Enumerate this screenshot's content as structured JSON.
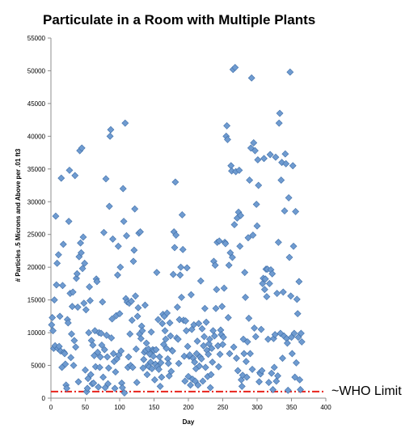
{
  "chart_data": {
    "type": "scatter",
    "title": "Particulate in a Room with Multiple Plants",
    "xlabel": "Day",
    "ylabel": "# Particles .5 Microns and Above per .01 ft3",
    "xlim": [
      0,
      400
    ],
    "ylim": [
      0,
      55000
    ],
    "xticks": [
      0,
      50,
      100,
      150,
      200,
      250,
      300,
      350,
      400
    ],
    "yticks": [
      0,
      5000,
      10000,
      15000,
      20000,
      25000,
      30000,
      35000,
      40000,
      45000,
      50000,
      55000
    ],
    "grid": false,
    "marker_color": "#6f9bd0",
    "marker_edge_color": "#3e6ea8",
    "annotation": {
      "text": "~WHO Limit",
      "y": 1000,
      "line_color": "#e8221b",
      "line_style": "dash-dot"
    },
    "points": [
      [
        1,
        11200
      ],
      [
        2,
        12300
      ],
      [
        3,
        10300
      ],
      [
        4,
        7600
      ],
      [
        5,
        15000
      ],
      [
        6,
        8000
      ],
      [
        7,
        27800
      ],
      [
        8,
        17300
      ],
      [
        9,
        20600
      ],
      [
        10,
        7600
      ],
      [
        11,
        21900
      ],
      [
        12,
        7900
      ],
      [
        13,
        12500
      ],
      [
        14,
        7200
      ],
      [
        15,
        33600
      ],
      [
        16,
        4700
      ],
      [
        17,
        17200
      ],
      [
        18,
        23500
      ],
      [
        19,
        7000
      ],
      [
        20,
        6800
      ],
      [
        21,
        5200
      ],
      [
        22,
        2000
      ],
      [
        23,
        1500
      ],
      [
        24,
        12000
      ],
      [
        25,
        11500
      ],
      [
        26,
        27000
      ],
      [
        27,
        34800
      ],
      [
        28,
        16000
      ],
      [
        29,
        6200
      ],
      [
        30,
        9800
      ],
      [
        31,
        14000
      ],
      [
        32,
        16200
      ],
      [
        33,
        5000
      ],
      [
        34,
        8800
      ],
      [
        35,
        34000
      ],
      [
        36,
        7800
      ],
      [
        37,
        18300
      ],
      [
        38,
        19000
      ],
      [
        39,
        13900
      ],
      [
        40,
        2500
      ],
      [
        41,
        21600
      ],
      [
        42,
        37800
      ],
      [
        43,
        23700
      ],
      [
        44,
        22200
      ],
      [
        45,
        38200
      ],
      [
        46,
        19800
      ],
      [
        47,
        24600
      ],
      [
        48,
        14500
      ],
      [
        49,
        20600
      ],
      [
        50,
        4300
      ],
      [
        51,
        13500
      ],
      [
        52,
        1000
      ],
      [
        53,
        1500
      ],
      [
        54,
        3000
      ],
      [
        55,
        10000
      ],
      [
        56,
        17000
      ],
      [
        57,
        14900
      ],
      [
        58,
        3600
      ],
      [
        59,
        8800
      ],
      [
        60,
        2200
      ],
      [
        61,
        8100
      ],
      [
        62,
        2300
      ],
      [
        63,
        6500
      ],
      [
        64,
        10300
      ],
      [
        65,
        4800
      ],
      [
        66,
        18200
      ],
      [
        67,
        17800
      ],
      [
        68,
        7000
      ],
      [
        69,
        1700
      ],
      [
        70,
        10000
      ],
      [
        71,
        4700
      ],
      [
        72,
        6300
      ],
      [
        73,
        9900
      ],
      [
        74,
        8100
      ],
      [
        75,
        14700
      ],
      [
        76,
        3200
      ],
      [
        77,
        25300
      ],
      [
        78,
        7400
      ],
      [
        79,
        1600
      ],
      [
        80,
        33500
      ],
      [
        81,
        9600
      ],
      [
        82,
        6300
      ],
      [
        83,
        2200
      ],
      [
        84,
        4600
      ],
      [
        85,
        29300
      ],
      [
        86,
        40000
      ],
      [
        87,
        41000
      ],
      [
        88,
        9200
      ],
      [
        89,
        12100
      ],
      [
        90,
        24300
      ],
      [
        91,
        6800
      ],
      [
        92,
        5600
      ],
      [
        93,
        1500
      ],
      [
        94,
        4000
      ],
      [
        95,
        12600
      ],
      [
        96,
        6000
      ],
      [
        97,
        18800
      ],
      [
        98,
        23200
      ],
      [
        99,
        6600
      ],
      [
        100,
        12900
      ],
      [
        101,
        20000
      ],
      [
        102,
        7200
      ],
      [
        103,
        2300
      ],
      [
        104,
        1600
      ],
      [
        105,
        32000
      ],
      [
        106,
        27000
      ],
      [
        107,
        800
      ],
      [
        108,
        42000
      ],
      [
        109,
        15200
      ],
      [
        110,
        24800
      ],
      [
        111,
        14700
      ],
      [
        112,
        4700
      ],
      [
        113,
        6300
      ],
      [
        114,
        14500
      ],
      [
        115,
        9800
      ],
      [
        116,
        5000
      ],
      [
        117,
        14800
      ],
      [
        118,
        11900
      ],
      [
        119,
        4700
      ],
      [
        120,
        20900
      ],
      [
        121,
        22600
      ],
      [
        122,
        28900
      ],
      [
        123,
        15600
      ],
      [
        124,
        7500
      ],
      [
        125,
        2400
      ],
      [
        126,
        12500
      ],
      [
        127,
        13800
      ],
      [
        128,
        25200
      ],
      [
        129,
        9800
      ],
      [
        130,
        25400
      ],
      [
        131,
        9100
      ],
      [
        132,
        11000
      ],
      [
        133,
        10300
      ],
      [
        134,
        4600
      ],
      [
        135,
        5900
      ],
      [
        136,
        7000
      ],
      [
        137,
        14200
      ],
      [
        138,
        7300
      ],
      [
        139,
        8400
      ],
      [
        140,
        3600
      ],
      [
        141,
        5000
      ],
      [
        142,
        7500
      ],
      [
        143,
        4800
      ],
      [
        144,
        6700
      ],
      [
        145,
        5500
      ],
      [
        146,
        10100
      ],
      [
        147,
        4500
      ],
      [
        148,
        7400
      ],
      [
        149,
        6400
      ],
      [
        150,
        7300
      ],
      [
        151,
        2800
      ],
      [
        152,
        5200
      ],
      [
        153,
        7400
      ],
      [
        154,
        19200
      ],
      [
        155,
        4800
      ],
      [
        156,
        12000
      ],
      [
        157,
        4400
      ],
      [
        158,
        6300
      ],
      [
        159,
        1800
      ],
      [
        160,
        5400
      ],
      [
        161,
        3200
      ],
      [
        162,
        11400
      ],
      [
        163,
        12800
      ],
      [
        164,
        8200
      ],
      [
        165,
        12500
      ],
      [
        166,
        10300
      ],
      [
        167,
        9000
      ],
      [
        168,
        7600
      ],
      [
        169,
        13000
      ],
      [
        170,
        6000
      ],
      [
        171,
        5300
      ],
      [
        172,
        3400
      ],
      [
        173,
        11500
      ],
      [
        174,
        9500
      ],
      [
        175,
        4100
      ],
      [
        176,
        7300
      ],
      [
        177,
        7200
      ],
      [
        178,
        18900
      ],
      [
        179,
        25400
      ],
      [
        180,
        23000
      ],
      [
        181,
        33000
      ],
      [
        182,
        24900
      ],
      [
        183,
        9200
      ],
      [
        184,
        13900
      ],
      [
        185,
        9000
      ],
      [
        186,
        5300
      ],
      [
        187,
        12000
      ],
      [
        188,
        18800
      ],
      [
        189,
        20000
      ],
      [
        190,
        15400
      ],
      [
        191,
        28000
      ],
      [
        192,
        22700
      ],
      [
        193,
        11900
      ],
      [
        194,
        6400
      ],
      [
        195,
        2600
      ],
      [
        196,
        11800
      ],
      [
        197,
        10300
      ],
      [
        198,
        19900
      ],
      [
        199,
        7900
      ],
      [
        200,
        3300
      ],
      [
        201,
        6400
      ],
      [
        202,
        6600
      ],
      [
        203,
        2000
      ],
      [
        204,
        15800
      ],
      [
        205,
        10500
      ],
      [
        206,
        2900
      ],
      [
        207,
        6100
      ],
      [
        208,
        11200
      ],
      [
        209,
        5500
      ],
      [
        210,
        2600
      ],
      [
        211,
        4500
      ],
      [
        212,
        6800
      ],
      [
        213,
        8700
      ],
      [
        214,
        2000
      ],
      [
        215,
        11400
      ],
      [
        216,
        4900
      ],
      [
        217,
        6300
      ],
      [
        218,
        17900
      ],
      [
        219,
        6000
      ],
      [
        220,
        10600
      ],
      [
        221,
        2600
      ],
      [
        222,
        8000
      ],
      [
        223,
        9400
      ],
      [
        224,
        13700
      ],
      [
        225,
        4700
      ],
      [
        226,
        11600
      ],
      [
        227,
        7300
      ],
      [
        228,
        3300
      ],
      [
        229,
        6700
      ],
      [
        230,
        8300
      ],
      [
        231,
        9000
      ],
      [
        232,
        1600
      ],
      [
        233,
        3600
      ],
      [
        234,
        7600
      ],
      [
        235,
        5500
      ],
      [
        236,
        10300
      ],
      [
        237,
        20900
      ],
      [
        238,
        9500
      ],
      [
        239,
        20300
      ],
      [
        240,
        13700
      ],
      [
        241,
        16600
      ],
      [
        242,
        23800
      ],
      [
        243,
        8000
      ],
      [
        244,
        4800
      ],
      [
        245,
        24000
      ],
      [
        246,
        6700
      ],
      [
        247,
        10400
      ],
      [
        248,
        9700
      ],
      [
        249,
        14000
      ],
      [
        250,
        8200
      ],
      [
        251,
        9300
      ],
      [
        252,
        16800
      ],
      [
        253,
        23800
      ],
      [
        254,
        23600
      ],
      [
        255,
        40000
      ],
      [
        256,
        41600
      ],
      [
        257,
        39500
      ],
      [
        258,
        12300
      ],
      [
        259,
        20300
      ],
      [
        260,
        6800
      ],
      [
        261,
        22200
      ],
      [
        262,
        35500
      ],
      [
        263,
        34700
      ],
      [
        264,
        21500
      ],
      [
        265,
        50200
      ],
      [
        266,
        7800
      ],
      [
        267,
        26500
      ],
      [
        268,
        50500
      ],
      [
        269,
        34600
      ],
      [
        270,
        6100
      ],
      [
        271,
        27500
      ],
      [
        272,
        4200
      ],
      [
        273,
        28400
      ],
      [
        274,
        34800
      ],
      [
        275,
        23200
      ],
      [
        276,
        27900
      ],
      [
        277,
        2800
      ],
      [
        278,
        1800
      ],
      [
        279,
        3500
      ],
      [
        280,
        9000
      ],
      [
        281,
        6800
      ],
      [
        282,
        19200
      ],
      [
        283,
        15400
      ],
      [
        284,
        5600
      ],
      [
        285,
        3200
      ],
      [
        286,
        8600
      ],
      [
        287,
        24500
      ],
      [
        288,
        12200
      ],
      [
        289,
        33300
      ],
      [
        290,
        6800
      ],
      [
        291,
        38200
      ],
      [
        292,
        48900
      ],
      [
        293,
        4400
      ],
      [
        294,
        24900
      ],
      [
        295,
        39000
      ],
      [
        296,
        10700
      ],
      [
        297,
        37800
      ],
      [
        298,
        9400
      ],
      [
        299,
        29600
      ],
      [
        300,
        26300
      ],
      [
        301,
        36400
      ],
      [
        302,
        32500
      ],
      [
        303,
        2500
      ],
      [
        304,
        3900
      ],
      [
        305,
        3700
      ],
      [
        306,
        10500
      ],
      [
        307,
        4200
      ],
      [
        308,
        17500
      ],
      [
        309,
        18300
      ],
      [
        310,
        36600
      ],
      [
        311,
        16600
      ],
      [
        312,
        18200
      ],
      [
        313,
        19700
      ],
      [
        314,
        15500
      ],
      [
        315,
        19700
      ],
      [
        316,
        9000
      ],
      [
        317,
        2400
      ],
      [
        318,
        17500
      ],
      [
        319,
        37200
      ],
      [
        320,
        19600
      ],
      [
        321,
        3800
      ],
      [
        322,
        19000
      ],
      [
        323,
        1300
      ],
      [
        324,
        9100
      ],
      [
        325,
        4700
      ],
      [
        326,
        9700
      ],
      [
        327,
        36800
      ],
      [
        328,
        2600
      ],
      [
        329,
        16000
      ],
      [
        330,
        3400
      ],
      [
        331,
        23800
      ],
      [
        332,
        42000
      ],
      [
        333,
        43500
      ],
      [
        334,
        9900
      ],
      [
        335,
        33300
      ],
      [
        336,
        36000
      ],
      [
        337,
        6100
      ],
      [
        338,
        16200
      ],
      [
        339,
        9500
      ],
      [
        340,
        28600
      ],
      [
        341,
        37300
      ],
      [
        342,
        35800
      ],
      [
        343,
        9100
      ],
      [
        344,
        8400
      ],
      [
        345,
        1200
      ],
      [
        346,
        30600
      ],
      [
        347,
        21500
      ],
      [
        348,
        49800
      ],
      [
        349,
        15600
      ],
      [
        350,
        9300
      ],
      [
        351,
        6800
      ],
      [
        352,
        35500
      ],
      [
        353,
        23200
      ],
      [
        354,
        9900
      ],
      [
        355,
        3200
      ],
      [
        356,
        28500
      ],
      [
        357,
        5400
      ],
      [
        358,
        15100
      ],
      [
        359,
        12900
      ],
      [
        360,
        9300
      ],
      [
        361,
        17800
      ],
      [
        362,
        2800
      ],
      [
        363,
        1300
      ],
      [
        364,
        9900
      ],
      [
        365,
        8600
      ]
    ]
  }
}
